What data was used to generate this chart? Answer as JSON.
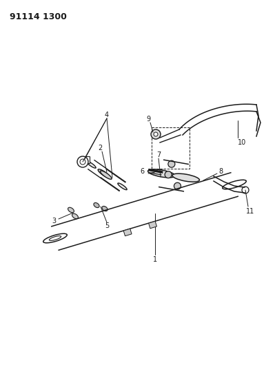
{
  "title": "91114 1300",
  "bg_color": "#ffffff",
  "line_color": "#1a1a1a",
  "title_fontsize": 9,
  "title_fontweight": "bold",
  "figsize": [
    3.99,
    5.33
  ],
  "dpi": 100
}
